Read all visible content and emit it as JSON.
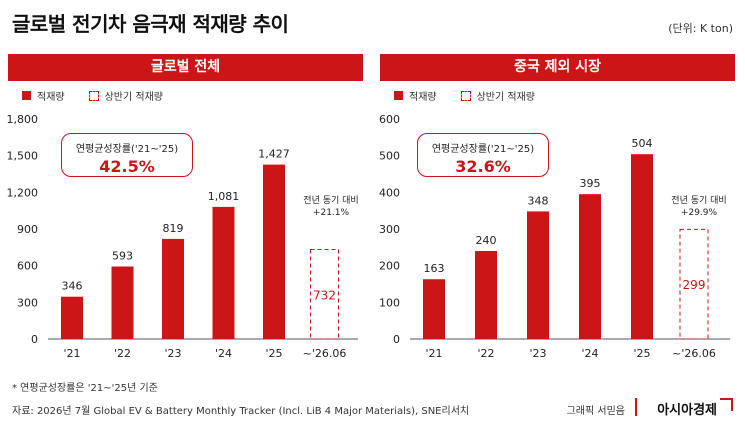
{
  "title": "글로벌 전기차 음극재 적재량 추이",
  "unit": "(단위: K ton)",
  "legend": {
    "solid": "적재량",
    "dashed": "상반기 적재량"
  },
  "colors": {
    "accent": "#cc1517"
  },
  "chart_data": [
    {
      "type": "bar",
      "title": "글로벌 전체",
      "categories": [
        "'21",
        "'22",
        "'23",
        "'24",
        "'25",
        "~'26.06"
      ],
      "values": [
        346,
        593,
        819,
        1081,
        1427,
        732
      ],
      "value_labels": [
        "346",
        "593",
        "819",
        "1,081",
        "1,427",
        "732"
      ],
      "dashed_categories": [
        "~'26.06"
      ],
      "ylim": [
        0,
        1800
      ],
      "yticks": [
        0,
        300,
        600,
        900,
        1200,
        1500,
        1800
      ],
      "ytick_labels": [
        "0",
        "300",
        "600",
        "900",
        "1,200",
        "1,500",
        "1,800"
      ],
      "cagr": {
        "label": "연평균성장률('21~'25)",
        "value": "42.5%"
      },
      "yoy": {
        "line1": "전년 동기 대비",
        "line2": "+21.1%"
      }
    },
    {
      "type": "bar",
      "title": "중국 제외 시장",
      "categories": [
        "'21",
        "'22",
        "'23",
        "'24",
        "'25",
        "~'26.06"
      ],
      "values": [
        163,
        240,
        348,
        395,
        504,
        299
      ],
      "value_labels": [
        "163",
        "240",
        "348",
        "395",
        "504",
        "299"
      ],
      "dashed_categories": [
        "~'26.06"
      ],
      "ylim": [
        0,
        600
      ],
      "yticks": [
        0,
        100,
        200,
        300,
        400,
        500,
        600
      ],
      "ytick_labels": [
        "0",
        "100",
        "200",
        "300",
        "400",
        "500",
        "600"
      ],
      "cagr": {
        "label": "연평균성장률('21~'25)",
        "value": "32.6%"
      },
      "yoy": {
        "line1": "전년 동기 대비",
        "line2": "+29.9%"
      }
    }
  ],
  "footnote": "* 연평균성장률은 '21~'25년 기준",
  "source": "자료: 2026년 7월 Global EV & Battery Monthly Tracker (Incl. LiB 4 Major Materials), SNE리서치",
  "credit": "그래픽 서믿음",
  "brand": "아시아경제"
}
